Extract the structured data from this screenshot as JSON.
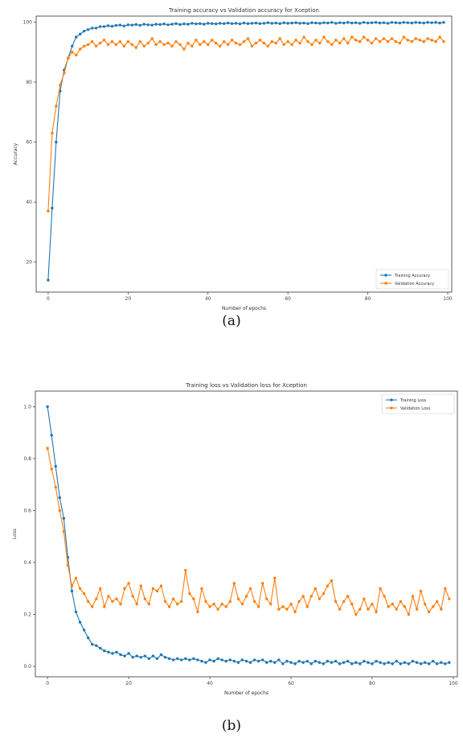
{
  "chart_data": [
    {
      "type": "line",
      "title": "Training accuracy vs Validation accuracy for Xception",
      "xlabel": "Number of epochs",
      "ylabel": "Accuracy",
      "xlim": [
        -3,
        101
      ],
      "ylim": [
        10,
        102
      ],
      "xticks": [
        0,
        20,
        40,
        60,
        80,
        100
      ],
      "yticks": [
        20,
        40,
        60,
        80,
        100
      ],
      "grid": false,
      "legend_position": "bottom-right",
      "caption": "(a)",
      "series": [
        {
          "name": "Training Accuracy",
          "color": "#1f77b4",
          "values": [
            14,
            38,
            60,
            77,
            84,
            88,
            92,
            95,
            96,
            97,
            97.5,
            98,
            98,
            98.5,
            98.5,
            98.8,
            98.6,
            98.9,
            99,
            98.7,
            99.1,
            99,
            99.2,
            98.9,
            99.3,
            99.1,
            99,
            99.3,
            99.2,
            99.4,
            99.1,
            99.3,
            99.5,
            99.2,
            99.4,
            99.3,
            99.6,
            99.4,
            99.5,
            99.3,
            99.6,
            99.5,
            99.4,
            99.6,
            99.5,
            99.7,
            99.5,
            99.6,
            99.4,
            99.7,
            99.5,
            99.6,
            99.7,
            99.5,
            99.6,
            99.8,
            99.6,
            99.7,
            99.5,
            99.8,
            99.6,
            99.7,
            99.8,
            99.6,
            99.7,
            99.5,
            99.8,
            99.7,
            99.6,
            99.8,
            99.7,
            99.9,
            99.6,
            99.8,
            99.7,
            99.9,
            99.7,
            99.8,
            99.6,
            99.9,
            99.7,
            99.8,
            99.9,
            99.7,
            99.8,
            99.6,
            99.9,
            99.8,
            99.7,
            99.9,
            99.8,
            99.7,
            99.9,
            99.8,
            99.7,
            99.9,
            99.8,
            99.9,
            99.7,
            99.9
          ]
        },
        {
          "name": "Validation Accuracy",
          "color": "#ff7f0e",
          "values": [
            37,
            63,
            72,
            79,
            83,
            88,
            90,
            89,
            91,
            92,
            92.5,
            93.5,
            92,
            93,
            94,
            92.5,
            93.5,
            92.5,
            93.5,
            92,
            93.5,
            92.5,
            91.5,
            93.5,
            92,
            93,
            94.5,
            92.5,
            93.5,
            92.5,
            93,
            92,
            93.5,
            92.5,
            91,
            93,
            92,
            94,
            92.5,
            93.5,
            92.5,
            94,
            93,
            92,
            93.5,
            92.5,
            94,
            93,
            92.5,
            93.5,
            94.5,
            92,
            93,
            94,
            93,
            92,
            93.5,
            93,
            94.5,
            92.5,
            93.5,
            92.5,
            94,
            93,
            95,
            93.5,
            92.5,
            94,
            93,
            95,
            93.5,
            92.5,
            94,
            93,
            94.5,
            93,
            95,
            94,
            93.5,
            95,
            94,
            93,
            94.5,
            93.5,
            94.5,
            93.5,
            94.5,
            93.5,
            93,
            95,
            94,
            93.5,
            94.5,
            94,
            93.5,
            94.5,
            94,
            93.5,
            95,
            93.5
          ]
        }
      ]
    },
    {
      "type": "line",
      "title": "Training loss vs Validation loss for Xception",
      "xlabel": "Number of epochs",
      "ylabel": "Loss",
      "xlim": [
        -3,
        101
      ],
      "ylim": [
        -0.04,
        1.06
      ],
      "xticks": [
        0,
        20,
        40,
        60,
        80,
        100
      ],
      "yticks": [
        0.0,
        0.2,
        0.4,
        0.6,
        0.8,
        1.0
      ],
      "ytick_labels": [
        "0.0",
        "0.2",
        "0.4",
        "0.6",
        "0.8",
        "1.0"
      ],
      "grid": false,
      "legend_position": "top-right",
      "caption": "(b)",
      "series": [
        {
          "name": "Training Loss",
          "color": "#1f77b4",
          "values": [
            1.0,
            0.89,
            0.77,
            0.65,
            0.57,
            0.42,
            0.29,
            0.21,
            0.17,
            0.14,
            0.11,
            0.085,
            0.08,
            0.07,
            0.06,
            0.055,
            0.05,
            0.055,
            0.045,
            0.04,
            0.05,
            0.035,
            0.04,
            0.035,
            0.04,
            0.03,
            0.04,
            0.03,
            0.045,
            0.035,
            0.03,
            0.025,
            0.03,
            0.025,
            0.03,
            0.025,
            0.03,
            0.025,
            0.02,
            0.015,
            0.025,
            0.02,
            0.03,
            0.025,
            0.02,
            0.025,
            0.02,
            0.015,
            0.025,
            0.02,
            0.015,
            0.025,
            0.02,
            0.025,
            0.015,
            0.02,
            0.015,
            0.025,
            0.01,
            0.02,
            0.015,
            0.01,
            0.02,
            0.015,
            0.02,
            0.01,
            0.02,
            0.015,
            0.01,
            0.02,
            0.015,
            0.02,
            0.01,
            0.015,
            0.02,
            0.01,
            0.015,
            0.01,
            0.02,
            0.015,
            0.01,
            0.02,
            0.015,
            0.01,
            0.015,
            0.01,
            0.02,
            0.01,
            0.015,
            0.01,
            0.02,
            0.015,
            0.01,
            0.015,
            0.01,
            0.02,
            0.01,
            0.015,
            0.01,
            0.015
          ]
        },
        {
          "name": "Validation Loss",
          "color": "#ff7f0e",
          "values": [
            0.84,
            0.76,
            0.69,
            0.6,
            0.52,
            0.39,
            0.31,
            0.34,
            0.3,
            0.28,
            0.25,
            0.23,
            0.26,
            0.3,
            0.23,
            0.27,
            0.25,
            0.26,
            0.24,
            0.3,
            0.32,
            0.27,
            0.24,
            0.31,
            0.26,
            0.24,
            0.3,
            0.29,
            0.31,
            0.25,
            0.23,
            0.26,
            0.24,
            0.25,
            0.37,
            0.28,
            0.26,
            0.21,
            0.3,
            0.25,
            0.23,
            0.24,
            0.22,
            0.24,
            0.23,
            0.25,
            0.32,
            0.26,
            0.24,
            0.27,
            0.3,
            0.25,
            0.23,
            0.32,
            0.26,
            0.24,
            0.34,
            0.22,
            0.23,
            0.22,
            0.24,
            0.21,
            0.25,
            0.27,
            0.23,
            0.27,
            0.3,
            0.26,
            0.28,
            0.31,
            0.33,
            0.25,
            0.22,
            0.25,
            0.27,
            0.24,
            0.2,
            0.22,
            0.26,
            0.22,
            0.24,
            0.21,
            0.3,
            0.27,
            0.23,
            0.24,
            0.22,
            0.25,
            0.23,
            0.2,
            0.27,
            0.22,
            0.29,
            0.24,
            0.21,
            0.23,
            0.25,
            0.22,
            0.3,
            0.26
          ]
        }
      ]
    }
  ]
}
